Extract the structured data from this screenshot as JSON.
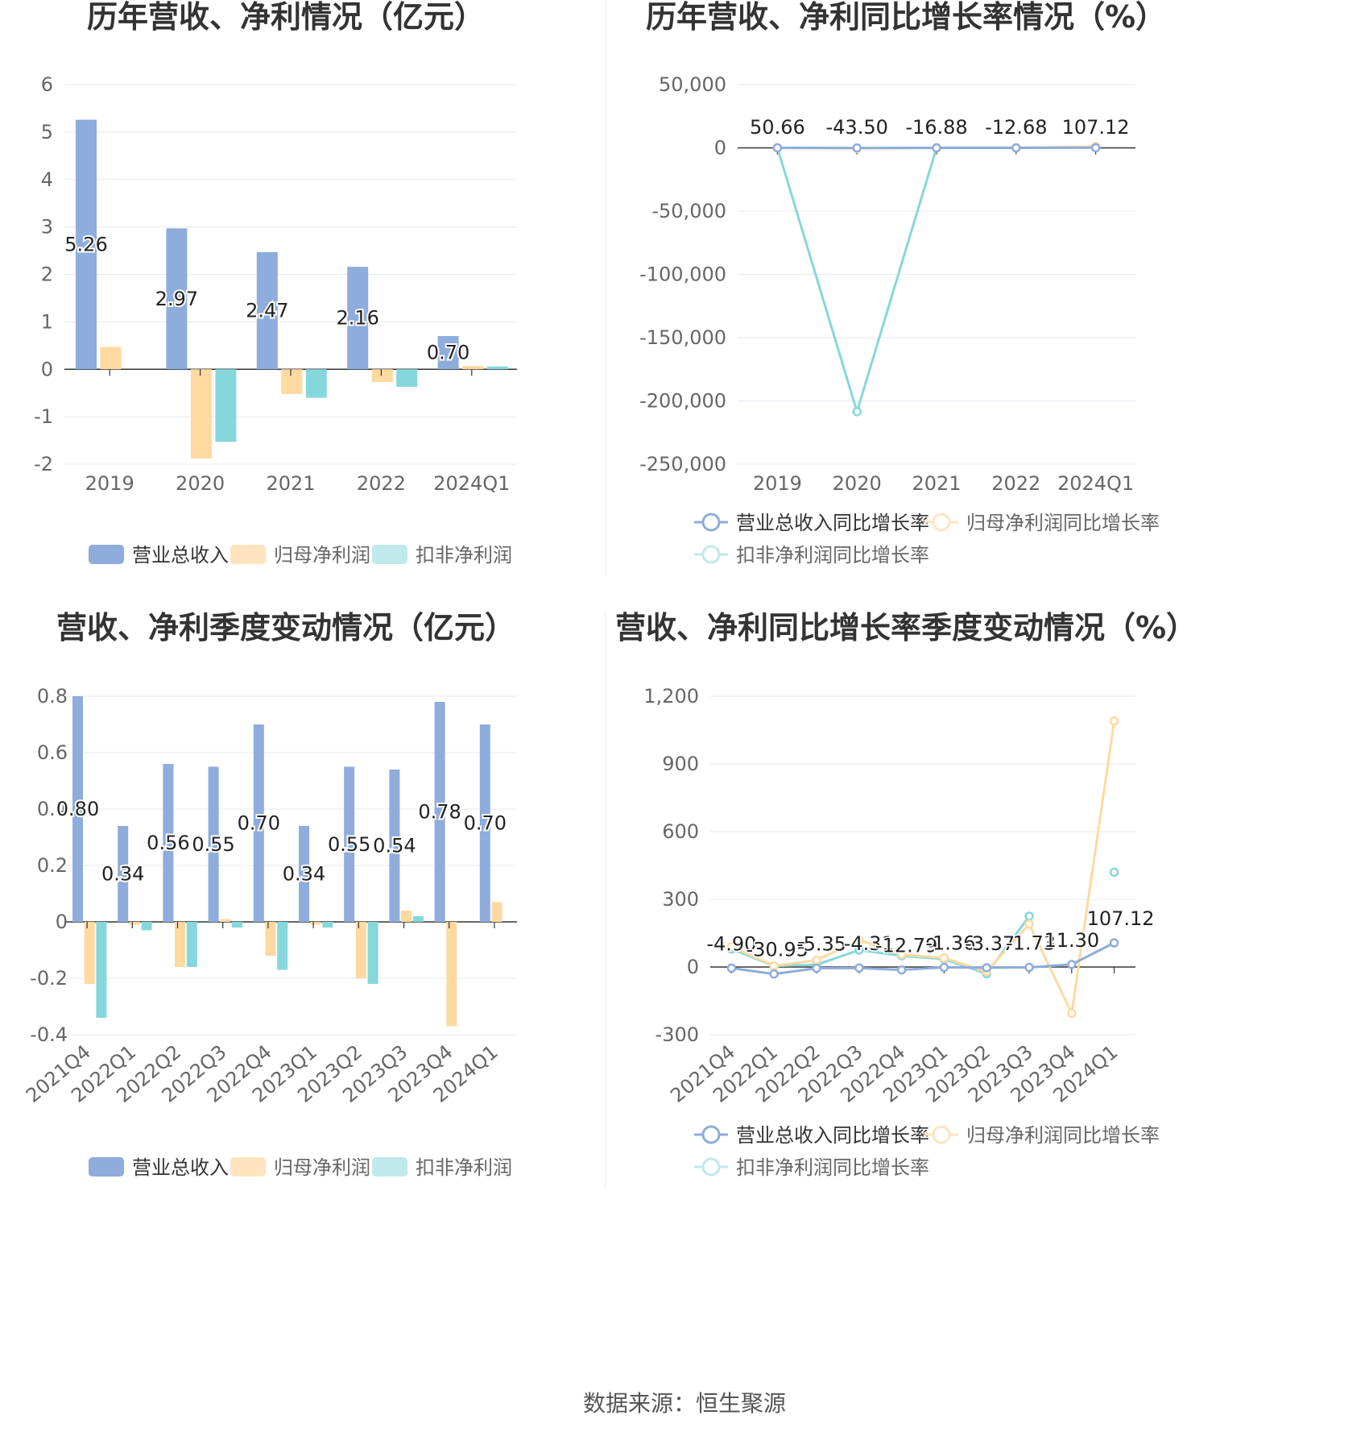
{
  "colors": {
    "revenue": "#8eacdc",
    "net_profit": "#ffd9a0",
    "deducted_profit": "#86d7db",
    "revenue_legend": "#8eacdc",
    "net_profit_legend": "#ffe4bf",
    "deducted_profit_legend": "#bfe9eb",
    "grid": "#e6e8f0",
    "axis": "#333333"
  },
  "source": "数据来源：恒生聚源",
  "chart_data": [
    {
      "id": "annual-bars",
      "type": "bar",
      "title": "历年营收、净利情况（亿元）",
      "categories": [
        "2019",
        "2020",
        "2021",
        "2022",
        "2024Q1"
      ],
      "series": [
        {
          "name": "营业总收入",
          "values": [
            5.26,
            2.97,
            2.47,
            2.16,
            0.7
          ],
          "labels": [
            "5.26",
            "2.97",
            "2.47",
            "2.16",
            "0.70"
          ]
        },
        {
          "name": "归母净利润",
          "values": [
            0.47,
            -1.88,
            -0.52,
            -0.27,
            0.07
          ]
        },
        {
          "name": "扣非净利润",
          "values": [
            0.0,
            -1.53,
            -0.6,
            -0.37,
            0.06
          ]
        }
      ],
      "yticks": [
        6,
        5,
        4,
        3,
        2,
        1,
        0,
        -1,
        -2
      ],
      "ytick_labels": [
        "6",
        "5",
        "4",
        "3",
        "2",
        "1",
        "0",
        "-1",
        "-2"
      ],
      "ylim": [
        -2,
        6
      ],
      "grid": true,
      "legend_position": "bottom"
    },
    {
      "id": "annual-growth",
      "type": "line",
      "title": "历年营收、净利同比增长率情况（%）",
      "categories": [
        "2019",
        "2020",
        "2021",
        "2022",
        "2024Q1"
      ],
      "series": [
        {
          "name": "营业总收入同比增长率",
          "values": [
            50.66,
            -43.5,
            -16.88,
            -12.68,
            107.12
          ],
          "labels": [
            "50.66",
            "-43.50",
            "-16.88",
            "-12.68",
            "107.12"
          ]
        },
        {
          "name": "归母净利润同比增长率",
          "values": [
            0,
            -500,
            72,
            48,
            1090
          ]
        },
        {
          "name": "扣非净利润同比增长率",
          "values": [
            0,
            -208500,
            60,
            40,
            420
          ]
        }
      ],
      "yticks": [
        50000,
        0,
        -50000,
        -100000,
        -150000,
        -200000,
        -250000
      ],
      "ytick_labels": [
        "50,000",
        "0",
        "-50,000",
        "-100,000",
        "-150,000",
        "-200,000",
        "-250,000"
      ],
      "ylim": [
        -250000,
        50000
      ],
      "grid": true,
      "legend_position": "bottom"
    },
    {
      "id": "quarterly-bars",
      "type": "bar",
      "title": "营收、净利季度变动情况（亿元）",
      "categories": [
        "2021Q4",
        "2022Q1",
        "2022Q2",
        "2022Q3",
        "2022Q4",
        "2023Q1",
        "2023Q2",
        "2023Q3",
        "2023Q4",
        "2024Q1"
      ],
      "series": [
        {
          "name": "营业总收入",
          "values": [
            0.8,
            0.34,
            0.56,
            0.55,
            0.7,
            0.34,
            0.55,
            0.54,
            0.78,
            0.7
          ],
          "labels": [
            "0.80",
            "0.34",
            "0.56",
            "0.55",
            "0.70",
            "0.34",
            "0.55",
            "0.54",
            "0.78",
            "0.70"
          ]
        },
        {
          "name": "归母净利润",
          "values": [
            -0.22,
            -0.01,
            -0.16,
            0.01,
            -0.12,
            -0.01,
            -0.2,
            0.04,
            -0.37,
            0.07
          ]
        },
        {
          "name": "扣非净利润",
          "values": [
            -0.34,
            -0.03,
            -0.16,
            -0.02,
            -0.17,
            -0.02,
            -0.22,
            0.02,
            0.0,
            0.0
          ]
        }
      ],
      "yticks": [
        0.8,
        0.6,
        0.4,
        0.2,
        0,
        -0.2,
        -0.4
      ],
      "ytick_labels": [
        "0.8",
        "0.6",
        "0.4",
        "0.2",
        "0",
        "-0.2",
        "-0.4"
      ],
      "ylim": [
        -0.4,
        0.8
      ],
      "grid": true,
      "legend_position": "bottom"
    },
    {
      "id": "quarterly-growth",
      "type": "line",
      "title": "营收、净利同比增长率季度变动情况（%）",
      "categories": [
        "2021Q4",
        "2022Q1",
        "2022Q2",
        "2022Q3",
        "2022Q4",
        "2023Q1",
        "2023Q2",
        "2023Q3",
        "2023Q4",
        "2024Q1"
      ],
      "series": [
        {
          "name": "营业总收入同比增长率",
          "values": [
            -4.9,
            -30.95,
            -5.35,
            -4.31,
            -12.79,
            -1.36,
            -3.37,
            -1.73,
            11.3,
            107.12
          ],
          "labels": [
            "-4.90",
            "-30.95",
            "-5.35",
            "-4.31",
            "-12.79",
            "-1.36",
            "-3.37",
            "-1.73",
            "11.30",
            "107.12"
          ]
        },
        {
          "name": "归母净利润同比增长率",
          "values": [
            90,
            5,
            30,
            120,
            55,
            40,
            -20,
            190,
            -205,
            1090
          ]
        },
        {
          "name": "扣非净利润同比增长率",
          "values": [
            80,
            5,
            10,
            75,
            50,
            35,
            -30,
            225,
            null,
            420
          ]
        }
      ],
      "yticks": [
        1200,
        900,
        600,
        300,
        0,
        -300
      ],
      "ytick_labels": [
        "1,200",
        "900",
        "600",
        "300",
        "0",
        "-300"
      ],
      "ylim": [
        -300,
        1200
      ],
      "grid": true,
      "legend_position": "bottom"
    }
  ]
}
